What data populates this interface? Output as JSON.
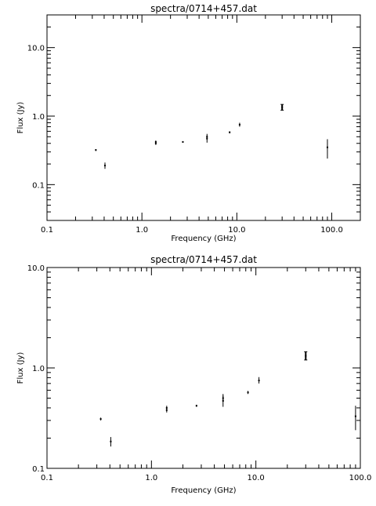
{
  "chart_data": [
    {
      "type": "scatter",
      "title": "spectra/0714+457.dat",
      "xlabel": "Frequency (GHz)",
      "ylabel": "Flux (Jy)",
      "xscale": "log",
      "yscale": "log",
      "xlim": [
        0.1,
        200
      ],
      "ylim": [
        0.03,
        30
      ],
      "xticklabels": [
        "0.1",
        "1.0",
        "10.0",
        "100.0"
      ],
      "yticklabels": [
        "0.1",
        "1.0",
        "10.0"
      ],
      "xticks": [
        0.1,
        1,
        10,
        100
      ],
      "yticks": [
        0.1,
        1,
        10
      ],
      "points": [
        {
          "x": 0.327,
          "y": 0.32,
          "yerr": [
            0.31,
            0.33
          ]
        },
        {
          "x": 0.408,
          "y": 0.19,
          "yerr": [
            0.17,
            0.21
          ]
        },
        {
          "x": 1.4,
          "y": 0.4,
          "yerr": [
            0.38,
            0.42
          ]
        },
        {
          "x": 1.4,
          "y": 0.42,
          "yerr": [
            0.4,
            0.44
          ]
        },
        {
          "x": 2.7,
          "y": 0.42,
          "yerr": [
            0.41,
            0.43
          ]
        },
        {
          "x": 4.85,
          "y": 0.47,
          "yerr": [
            0.41,
            0.52
          ]
        },
        {
          "x": 4.85,
          "y": 0.5,
          "yerr": [
            0.46,
            0.55
          ]
        },
        {
          "x": 8.4,
          "y": 0.58,
          "yerr": [
            0.56,
            0.6
          ]
        },
        {
          "x": 10.7,
          "y": 0.75,
          "yerr": [
            0.7,
            0.8
          ]
        },
        {
          "x": 30,
          "y": 1.35,
          "yerr": [
            1.22,
            1.48
          ]
        },
        {
          "x": 90,
          "y": 0.35,
          "yerr": [
            0.24,
            0.46
          ]
        }
      ]
    },
    {
      "type": "scatter",
      "title": "spectra/0714+457.dat",
      "xlabel": "Frequency (GHz)",
      "ylabel": "Flux (Jy)",
      "xscale": "log",
      "yscale": "log",
      "xlim": [
        0.1,
        100
      ],
      "ylim": [
        0.1,
        10
      ],
      "xticklabels": [
        "0.1",
        "1.0",
        "10.0",
        "100.0"
      ],
      "yticklabels": [
        "0.1",
        "1.0",
        "10.0"
      ],
      "xticks": [
        0.1,
        1,
        10,
        100
      ],
      "yticks": [
        0.1,
        1,
        10
      ],
      "points": [
        {
          "x": 0.327,
          "y": 0.31,
          "yerr": [
            0.3,
            0.32
          ]
        },
        {
          "x": 0.408,
          "y": 0.185,
          "yerr": [
            0.165,
            0.205
          ]
        },
        {
          "x": 1.4,
          "y": 0.38,
          "yerr": [
            0.36,
            0.4
          ]
        },
        {
          "x": 1.4,
          "y": 0.4,
          "yerr": [
            0.38,
            0.42
          ]
        },
        {
          "x": 2.7,
          "y": 0.42,
          "yerr": [
            0.41,
            0.43
          ]
        },
        {
          "x": 4.85,
          "y": 0.47,
          "yerr": [
            0.41,
            0.53
          ]
        },
        {
          "x": 4.85,
          "y": 0.5,
          "yerr": [
            0.46,
            0.55
          ]
        },
        {
          "x": 8.4,
          "y": 0.57,
          "yerr": [
            0.55,
            0.59
          ]
        },
        {
          "x": 10.7,
          "y": 0.75,
          "yerr": [
            0.7,
            0.81
          ]
        },
        {
          "x": 30,
          "y": 1.32,
          "yerr": [
            1.2,
            1.45
          ]
        },
        {
          "x": 90,
          "y": 0.33,
          "yerr": [
            0.24,
            0.42
          ]
        }
      ]
    }
  ]
}
